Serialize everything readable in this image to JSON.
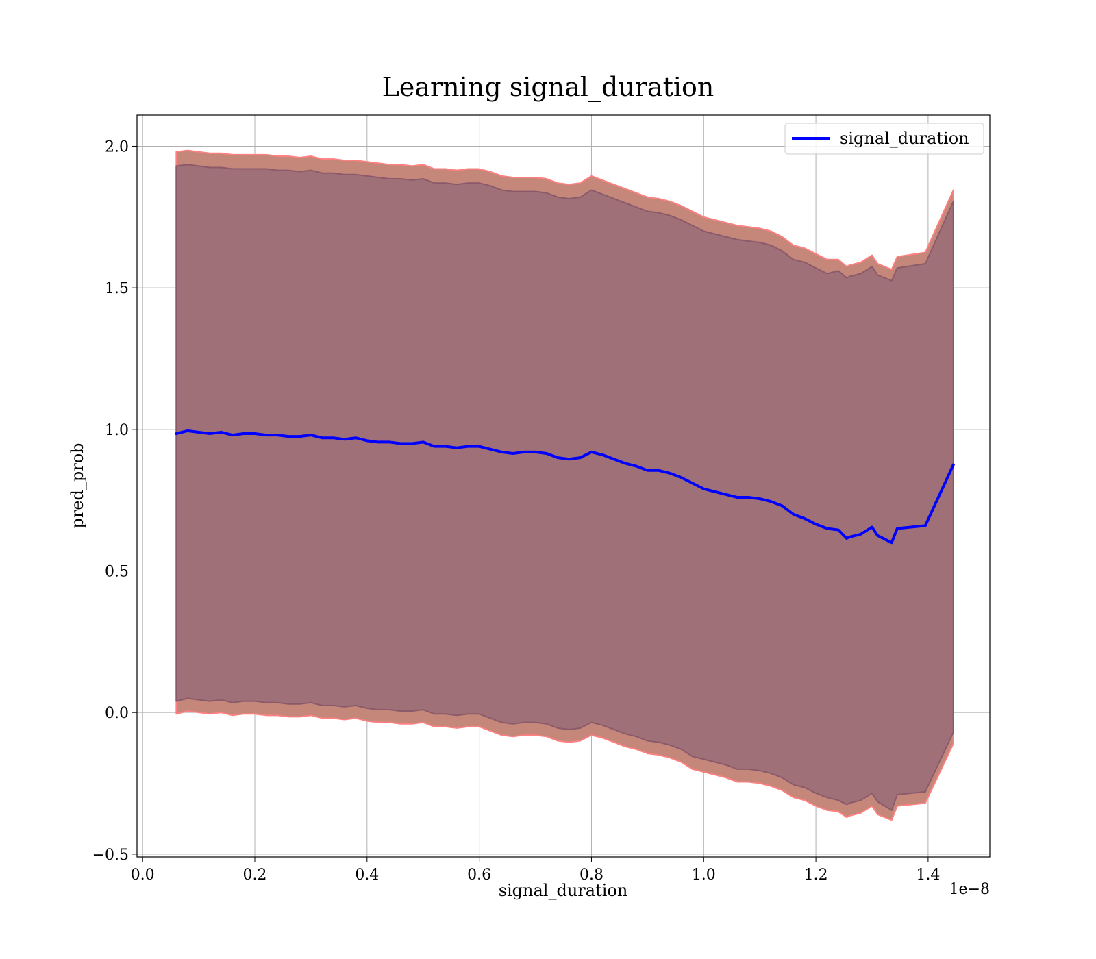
{
  "chart_data": {
    "type": "line",
    "title": "Learning signal_duration",
    "xlabel": "signal_duration",
    "ylabel": "pred_prob",
    "x_offset_label": "1e−8",
    "xlim": [
      -0.01,
      1.51
    ],
    "ylim": [
      -0.51,
      2.11
    ],
    "x_ticks": [
      0.0,
      0.2,
      0.4,
      0.6,
      0.8,
      1.0,
      1.2,
      1.4
    ],
    "x_tick_labels": [
      "0.0",
      "0.2",
      "0.4",
      "0.6",
      "0.8",
      "1.0",
      "1.2",
      "1.4"
    ],
    "y_ticks": [
      -0.5,
      0.0,
      0.5,
      1.0,
      1.5,
      2.0
    ],
    "y_tick_labels": [
      "−0.5",
      "0.0",
      "0.5",
      "1.0",
      "1.5",
      "2.0"
    ],
    "grid": true,
    "legend_position": "top-right",
    "x": [
      0.06,
      0.08,
      0.1,
      0.12,
      0.14,
      0.16,
      0.18,
      0.2,
      0.22,
      0.24,
      0.26,
      0.28,
      0.3,
      0.32,
      0.34,
      0.36,
      0.38,
      0.4,
      0.42,
      0.44,
      0.46,
      0.48,
      0.5,
      0.52,
      0.54,
      0.56,
      0.58,
      0.6,
      0.62,
      0.64,
      0.66,
      0.68,
      0.7,
      0.72,
      0.74,
      0.76,
      0.78,
      0.8,
      0.82,
      0.84,
      0.86,
      0.88,
      0.9,
      0.92,
      0.94,
      0.96,
      0.98,
      1.0,
      1.02,
      1.04,
      1.06,
      1.08,
      1.1,
      1.12,
      1.14,
      1.16,
      1.18,
      1.2,
      1.22,
      1.24,
      1.255,
      1.26,
      1.28,
      1.3,
      1.31,
      1.335,
      1.345,
      1.395,
      1.445
    ],
    "series": [
      {
        "name": "signal_duration",
        "color": "#0000ff",
        "values": [
          0.985,
          0.995,
          0.99,
          0.985,
          0.99,
          0.98,
          0.985,
          0.985,
          0.98,
          0.98,
          0.975,
          0.975,
          0.98,
          0.97,
          0.97,
          0.965,
          0.97,
          0.96,
          0.955,
          0.955,
          0.95,
          0.95,
          0.955,
          0.94,
          0.94,
          0.935,
          0.94,
          0.94,
          0.93,
          0.92,
          0.915,
          0.92,
          0.92,
          0.915,
          0.9,
          0.895,
          0.9,
          0.92,
          0.91,
          0.895,
          0.88,
          0.87,
          0.855,
          0.855,
          0.845,
          0.83,
          0.81,
          0.79,
          0.78,
          0.77,
          0.76,
          0.76,
          0.755,
          0.745,
          0.73,
          0.7,
          0.685,
          0.665,
          0.65,
          0.645,
          0.615,
          0.62,
          0.63,
          0.655,
          0.625,
          0.6,
          0.65,
          0.66,
          0.875
        ]
      }
    ],
    "bands": [
      {
        "upper": [
          1.98,
          1.985,
          1.98,
          1.975,
          1.975,
          1.97,
          1.97,
          1.97,
          1.97,
          1.965,
          1.965,
          1.96,
          1.965,
          1.955,
          1.955,
          1.95,
          1.95,
          1.945,
          1.94,
          1.935,
          1.935,
          1.93,
          1.935,
          1.92,
          1.92,
          1.915,
          1.92,
          1.92,
          1.91,
          1.895,
          1.89,
          1.89,
          1.89,
          1.885,
          1.87,
          1.865,
          1.87,
          1.895,
          1.88,
          1.865,
          1.85,
          1.835,
          1.82,
          1.815,
          1.805,
          1.79,
          1.77,
          1.75,
          1.74,
          1.73,
          1.72,
          1.715,
          1.71,
          1.7,
          1.68,
          1.65,
          1.64,
          1.62,
          1.6,
          1.6,
          1.575,
          1.58,
          1.59,
          1.615,
          1.585,
          1.565,
          1.61,
          1.625,
          1.845
        ],
        "lower": [
          -0.005,
          0.005,
          0.0,
          -0.005,
          0.0,
          -0.01,
          -0.005,
          -0.005,
          -0.01,
          -0.01,
          -0.015,
          -0.015,
          -0.01,
          -0.02,
          -0.02,
          -0.025,
          -0.02,
          -0.03,
          -0.035,
          -0.035,
          -0.04,
          -0.04,
          -0.035,
          -0.05,
          -0.05,
          -0.055,
          -0.05,
          -0.05,
          -0.065,
          -0.08,
          -0.085,
          -0.08,
          -0.08,
          -0.085,
          -0.1,
          -0.105,
          -0.1,
          -0.08,
          -0.09,
          -0.105,
          -0.12,
          -0.13,
          -0.145,
          -0.15,
          -0.16,
          -0.175,
          -0.2,
          -0.21,
          -0.22,
          -0.23,
          -0.245,
          -0.245,
          -0.25,
          -0.26,
          -0.275,
          -0.3,
          -0.31,
          -0.33,
          -0.345,
          -0.35,
          -0.37,
          -0.365,
          -0.355,
          -0.33,
          -0.36,
          -0.38,
          -0.33,
          -0.32,
          -0.11
        ],
        "fill": "#c4877a",
        "edge": "#ff8080"
      },
      {
        "upper": [
          1.93,
          1.935,
          1.93,
          1.925,
          1.925,
          1.92,
          1.92,
          1.92,
          1.92,
          1.915,
          1.915,
          1.91,
          1.915,
          1.905,
          1.905,
          1.9,
          1.9,
          1.895,
          1.89,
          1.885,
          1.885,
          1.88,
          1.885,
          1.87,
          1.87,
          1.865,
          1.87,
          1.87,
          1.86,
          1.845,
          1.84,
          1.84,
          1.84,
          1.835,
          1.82,
          1.815,
          1.82,
          1.845,
          1.83,
          1.815,
          1.8,
          1.785,
          1.77,
          1.765,
          1.755,
          1.74,
          1.72,
          1.7,
          1.69,
          1.68,
          1.67,
          1.665,
          1.66,
          1.65,
          1.63,
          1.6,
          1.59,
          1.57,
          1.55,
          1.56,
          1.535,
          1.54,
          1.55,
          1.575,
          1.545,
          1.525,
          1.57,
          1.585,
          1.805
        ],
        "lower": [
          0.04,
          0.05,
          0.045,
          0.04,
          0.045,
          0.035,
          0.04,
          0.04,
          0.035,
          0.035,
          0.03,
          0.03,
          0.035,
          0.025,
          0.025,
          0.02,
          0.025,
          0.015,
          0.01,
          0.01,
          0.005,
          0.005,
          0.01,
          -0.005,
          -0.005,
          -0.01,
          -0.005,
          -0.005,
          -0.02,
          -0.035,
          -0.04,
          -0.035,
          -0.035,
          -0.04,
          -0.055,
          -0.06,
          -0.055,
          -0.035,
          -0.045,
          -0.06,
          -0.075,
          -0.085,
          -0.1,
          -0.105,
          -0.115,
          -0.13,
          -0.155,
          -0.165,
          -0.175,
          -0.185,
          -0.2,
          -0.2,
          -0.205,
          -0.215,
          -0.23,
          -0.255,
          -0.265,
          -0.285,
          -0.3,
          -0.31,
          -0.325,
          -0.32,
          -0.31,
          -0.285,
          -0.315,
          -0.345,
          -0.29,
          -0.28,
          -0.07
        ],
        "fill": "#a07078",
        "edge": "#8a5a6a"
      }
    ]
  }
}
